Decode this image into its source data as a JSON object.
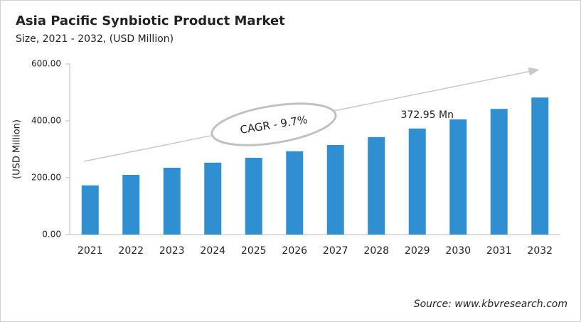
{
  "chart_data": {
    "type": "bar",
    "title": "Asia Pacific Synbiotic Product Market",
    "subtitle": "Size, 2021 - 2032, (USD Million)",
    "y_label": "(USD Million)",
    "categories": [
      "2021",
      "2022",
      "2023",
      "2024",
      "2025",
      "2026",
      "2027",
      "2028",
      "2029",
      "2030",
      "2031",
      "2032"
    ],
    "values": [
      173,
      210,
      235,
      253,
      270,
      293,
      315,
      343,
      372.95,
      405,
      442,
      482
    ],
    "value_labels": [
      null,
      null,
      null,
      null,
      null,
      null,
      null,
      null,
      "372.95 Mn",
      null,
      null,
      null
    ],
    "color": "#2f8fd0",
    "ylim": [
      0,
      600
    ],
    "yticks": [
      {
        "value": 0,
        "label": "0.00"
      },
      {
        "value": 200,
        "label": "200.00"
      },
      {
        "value": 400,
        "label": "400.00"
      },
      {
        "value": 600,
        "label": "600.00"
      }
    ],
    "grid": false,
    "annotation": "CAGR - 9.7%",
    "source": "Source: www.kbvresearch.com"
  }
}
